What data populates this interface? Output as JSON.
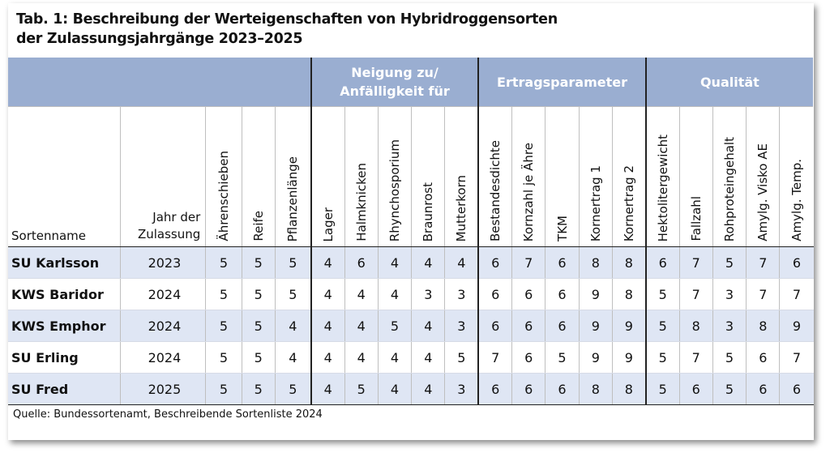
{
  "title": {
    "line1": "Tab. 1: Beschreibung der Werteigenschaften von Hybridroggensorten",
    "line2": "der Zulassungsjahrgänge 2023–2025"
  },
  "groups": {
    "neigung_line1": "Neigung zu/",
    "neigung_line2": "Anfälligkeit für",
    "ertrag": "Ertragsparameter",
    "qualitaet": "Qualität"
  },
  "columns": {
    "name": "Sortenname",
    "year_line1": "Jahr der",
    "year_line2": "Zulassung",
    "traits": [
      "Ährenschieben",
      "Reife",
      "Pflanzenlänge",
      "Lager",
      "Halmknicken",
      "Rhynchosporium",
      "Braunrost",
      "Mutterkorn",
      "Bestandesdichte",
      "Kornzahl je Ähre",
      "TKM",
      "Kornertrag 1",
      "Kornertrag 2",
      "Hektolitergewicht",
      "Fallzahl",
      "Rohproteingehalt",
      "Amylg. Visko AE",
      "Amylg. Temp."
    ]
  },
  "rows": [
    {
      "name": "SU Karlsson",
      "year": "2023",
      "values": [
        "5",
        "5",
        "5",
        "4",
        "6",
        "4",
        "4",
        "4",
        "6",
        "7",
        "6",
        "8",
        "8",
        "6",
        "7",
        "5",
        "7",
        "6"
      ]
    },
    {
      "name": "KWS Baridor",
      "year": "2024",
      "values": [
        "5",
        "5",
        "5",
        "4",
        "4",
        "4",
        "3",
        "3",
        "6",
        "6",
        "6",
        "9",
        "8",
        "5",
        "7",
        "3",
        "7",
        "7"
      ]
    },
    {
      "name": "KWS Emphor",
      "year": "2024",
      "values": [
        "5",
        "5",
        "4",
        "4",
        "4",
        "5",
        "4",
        "3",
        "6",
        "6",
        "6",
        "9",
        "9",
        "5",
        "8",
        "3",
        "8",
        "9"
      ]
    },
    {
      "name": "SU Erling",
      "year": "2024",
      "values": [
        "5",
        "5",
        "4",
        "4",
        "4",
        "4",
        "4",
        "5",
        "7",
        "6",
        "5",
        "9",
        "9",
        "5",
        "7",
        "5",
        "6",
        "7"
      ]
    },
    {
      "name": "SU Fred",
      "year": "2025",
      "values": [
        "5",
        "5",
        "5",
        "4",
        "5",
        "4",
        "4",
        "3",
        "6",
        "6",
        "6",
        "8",
        "8",
        "5",
        "6",
        "5",
        "6",
        "6"
      ]
    }
  ],
  "source": "Quelle: Bundessortenamt, Beschreibende Sortenliste 2024",
  "colors": {
    "header_band": "#9aaed1",
    "row_shade": "#dfe6f4"
  }
}
